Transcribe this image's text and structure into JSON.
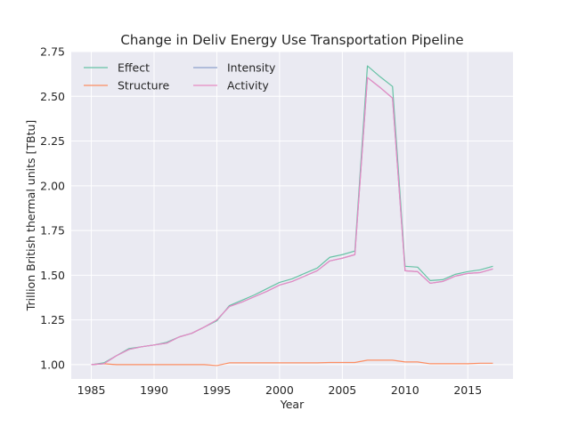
{
  "chart_data": {
    "type": "line",
    "title": "Change in Deliv Energy Use Transportation Pipeline",
    "xlabel": "Year",
    "ylabel": "Trillion British thermal units [TBtu]",
    "xlim": [
      1983.4,
      2018.6
    ],
    "ylim": [
      0.92,
      2.75
    ],
    "xticks": [
      1985,
      1990,
      1995,
      2000,
      2005,
      2010,
      2015
    ],
    "yticks": [
      "1.00",
      "1.25",
      "1.50",
      "1.75",
      "2.00",
      "2.25",
      "2.50",
      "2.75"
    ],
    "grid": true,
    "legend": "top-left",
    "background": "#eaeaf2",
    "x": [
      1985,
      1986,
      1987,
      1988,
      1989,
      1990,
      1991,
      1992,
      1993,
      1994,
      1995,
      1996,
      1997,
      1998,
      1999,
      2000,
      2001,
      2002,
      2003,
      2004,
      2005,
      2006,
      2007,
      2008,
      2009,
      2010,
      2011,
      2012,
      2013,
      2014,
      2015,
      2016,
      2017
    ],
    "series": [
      {
        "name": "Effect",
        "color": "#66c2a5",
        "values": [
          1.0,
          1.01,
          1.05,
          1.09,
          1.1,
          1.11,
          1.125,
          1.155,
          1.175,
          1.21,
          1.245,
          1.33,
          1.36,
          1.39,
          1.425,
          1.46,
          1.48,
          1.51,
          1.54,
          1.6,
          1.615,
          1.635,
          2.67,
          2.61,
          2.555,
          1.55,
          1.545,
          1.47,
          1.475,
          1.505,
          1.52,
          1.53,
          1.55
        ]
      },
      {
        "name": "Structure",
        "color": "#fc8d62",
        "values": [
          1.0,
          1.005,
          1.0,
          1.0,
          1.0,
          1.0,
          1.0,
          1.0,
          1.0,
          1.0,
          0.995,
          1.01,
          1.01,
          1.01,
          1.01,
          1.01,
          1.01,
          1.01,
          1.01,
          1.012,
          1.012,
          1.012,
          1.025,
          1.025,
          1.025,
          1.015,
          1.015,
          1.005,
          1.005,
          1.005,
          1.005,
          1.008,
          1.008
        ]
      },
      {
        "name": "Intensity",
        "color": "#8da0cb",
        "values": [
          1.0,
          1.005,
          1.05,
          1.085,
          1.1,
          1.11,
          1.12,
          1.155,
          1.175,
          1.21,
          1.25,
          1.325,
          1.35,
          1.38,
          1.41,
          1.445,
          1.465,
          1.495,
          1.525,
          1.58,
          1.595,
          1.615,
          2.605,
          2.55,
          2.49,
          1.525,
          1.52,
          1.455,
          1.465,
          1.495,
          1.51,
          1.515,
          1.535
        ]
      },
      {
        "name": "Activity",
        "color": "#e78ac3",
        "values": [
          1.0,
          1.005,
          1.05,
          1.085,
          1.1,
          1.11,
          1.12,
          1.155,
          1.175,
          1.21,
          1.25,
          1.325,
          1.35,
          1.38,
          1.41,
          1.445,
          1.465,
          1.495,
          1.525,
          1.58,
          1.595,
          1.615,
          2.605,
          2.55,
          2.49,
          1.525,
          1.52,
          1.455,
          1.465,
          1.495,
          1.51,
          1.515,
          1.535
        ]
      }
    ]
  }
}
